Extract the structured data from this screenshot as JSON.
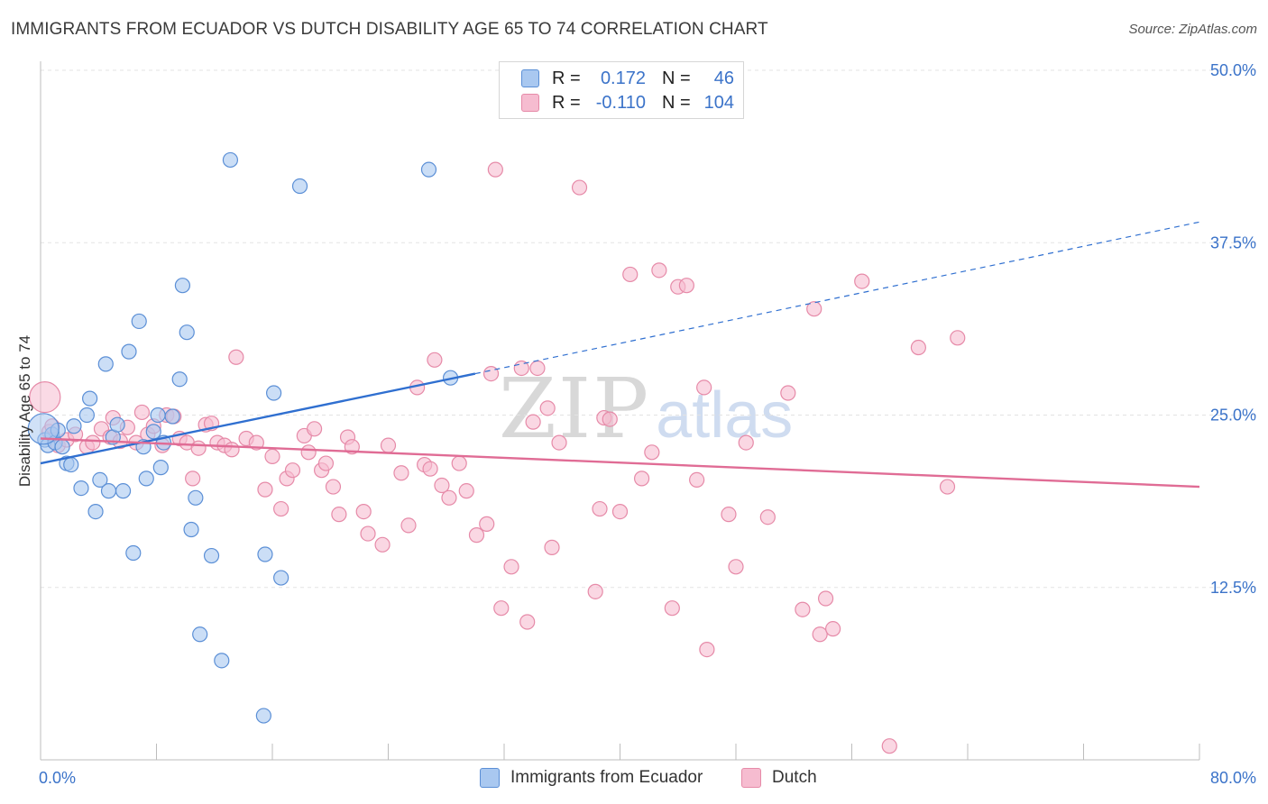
{
  "title": "IMMIGRANTS FROM ECUADOR VS DUTCH DISABILITY AGE 65 TO 74 CORRELATION CHART",
  "source": "Source: ZipAtlas.com",
  "watermark": {
    "zip": "ZIP",
    "atlas": "atlas"
  },
  "legend": {
    "rows": [
      {
        "r_label": "R =",
        "r_value": "0.172",
        "n_label": "N =",
        "n_value": "46"
      },
      {
        "r_label": "R =",
        "r_value": "-0.110",
        "n_label": "N =",
        "n_value": "104"
      }
    ]
  },
  "colors": {
    "blue_fill": "#a9c8f0",
    "blue_stroke": "#5b8fd6",
    "blue_line": "#2f6fd0",
    "pink_fill": "#f6bcd0",
    "pink_stroke": "#e68aa8",
    "pink_line": "#e06c95",
    "grid": "#e3e3e3",
    "tick_text": "#3b73c9"
  },
  "chart_data": {
    "type": "scatter",
    "title": "IMMIGRANTS FROM ECUADOR VS DUTCH DISABILITY AGE 65 TO 74 CORRELATION CHART",
    "xlabel": "",
    "ylabel": "Disability Age 65 to 74",
    "xlim": [
      0,
      80
    ],
    "ylim": [
      0,
      50
    ],
    "x_tick_labels": [
      "0.0%",
      "80.0%"
    ],
    "y_ticks": [
      12.5,
      25.0,
      37.5,
      50.0
    ],
    "y_tick_labels": [
      "12.5%",
      "25.0%",
      "37.5%",
      "50.0%"
    ],
    "series": [
      {
        "name": "Immigrants from Ecuador",
        "color": "blue",
        "r": 0.172,
        "n": 46,
        "trend": {
          "x0": 0,
          "y0": 21.5,
          "x1": 30,
          "y1": 28.0,
          "dash_x1": 80,
          "dash_y1": 39.0
        },
        "points": [
          [
            0.3,
            23.2
          ],
          [
            0.5,
            22.8
          ],
          [
            0.8,
            23.6
          ],
          [
            1.0,
            23.0
          ],
          [
            1.2,
            23.9
          ],
          [
            1.5,
            22.7
          ],
          [
            1.8,
            21.5
          ],
          [
            2.1,
            21.4
          ],
          [
            2.3,
            24.2
          ],
          [
            2.8,
            19.7
          ],
          [
            3.2,
            25.0
          ],
          [
            3.4,
            26.2
          ],
          [
            3.8,
            18.0
          ],
          [
            4.1,
            20.3
          ],
          [
            4.5,
            28.7
          ],
          [
            4.7,
            19.5
          ],
          [
            5.0,
            23.4
          ],
          [
            5.3,
            24.3
          ],
          [
            5.7,
            19.5
          ],
          [
            6.1,
            29.6
          ],
          [
            6.4,
            15.0
          ],
          [
            6.8,
            31.8
          ],
          [
            7.1,
            22.7
          ],
          [
            7.3,
            20.4
          ],
          [
            7.8,
            23.8
          ],
          [
            8.1,
            25.0
          ],
          [
            8.3,
            21.2
          ],
          [
            8.5,
            23.0
          ],
          [
            9.1,
            24.9
          ],
          [
            9.6,
            27.6
          ],
          [
            9.8,
            34.4
          ],
          [
            10.1,
            31.0
          ],
          [
            10.4,
            16.7
          ],
          [
            10.7,
            19.0
          ],
          [
            11.0,
            9.1
          ],
          [
            11.8,
            14.8
          ],
          [
            12.5,
            7.2
          ],
          [
            13.1,
            43.5
          ],
          [
            15.4,
            3.2
          ],
          [
            15.5,
            14.9
          ],
          [
            16.1,
            26.6
          ],
          [
            16.6,
            13.2
          ],
          [
            17.9,
            41.6
          ],
          [
            26.8,
            42.8
          ],
          [
            28.3,
            27.7
          ],
          [
            0.2,
            24.0
          ]
        ]
      },
      {
        "name": "Dutch",
        "color": "pink",
        "r": -0.11,
        "n": 104,
        "trend": {
          "x0": 0,
          "y0": 23.3,
          "x1": 80,
          "y1": 19.8
        },
        "points": [
          [
            0.3,
            26.3
          ],
          [
            0.6,
            23.8
          ],
          [
            1.2,
            22.8
          ],
          [
            1.8,
            23.2
          ],
          [
            2.4,
            23.6
          ],
          [
            3.2,
            22.7
          ],
          [
            3.6,
            23.0
          ],
          [
            4.2,
            24.0
          ],
          [
            4.8,
            23.4
          ],
          [
            5.0,
            24.8
          ],
          [
            5.5,
            23.1
          ],
          [
            6.0,
            24.1
          ],
          [
            6.6,
            23.0
          ],
          [
            7.0,
            25.2
          ],
          [
            7.4,
            23.6
          ],
          [
            7.8,
            24.2
          ],
          [
            8.4,
            22.8
          ],
          [
            8.7,
            25.0
          ],
          [
            9.2,
            24.9
          ],
          [
            9.6,
            23.3
          ],
          [
            10.1,
            23.0
          ],
          [
            10.5,
            20.4
          ],
          [
            10.9,
            22.6
          ],
          [
            11.4,
            24.3
          ],
          [
            11.8,
            24.4
          ],
          [
            12.2,
            23.0
          ],
          [
            12.7,
            22.8
          ],
          [
            13.2,
            22.5
          ],
          [
            13.5,
            29.2
          ],
          [
            14.2,
            23.3
          ],
          [
            14.9,
            23.0
          ],
          [
            15.5,
            19.6
          ],
          [
            16.0,
            22.0
          ],
          [
            16.6,
            18.2
          ],
          [
            17.0,
            20.4
          ],
          [
            17.4,
            21.0
          ],
          [
            18.2,
            23.5
          ],
          [
            18.5,
            22.3
          ],
          [
            18.9,
            24.0
          ],
          [
            19.4,
            21.0
          ],
          [
            19.7,
            21.5
          ],
          [
            20.2,
            19.8
          ],
          [
            20.6,
            17.8
          ],
          [
            21.2,
            23.4
          ],
          [
            21.5,
            22.7
          ],
          [
            22.3,
            18.0
          ],
          [
            22.6,
            16.4
          ],
          [
            23.6,
            15.6
          ],
          [
            24.0,
            22.8
          ],
          [
            24.9,
            20.8
          ],
          [
            25.4,
            17.0
          ],
          [
            26.0,
            27.0
          ],
          [
            26.5,
            21.4
          ],
          [
            26.9,
            21.1
          ],
          [
            27.2,
            29.0
          ],
          [
            27.7,
            19.9
          ],
          [
            28.2,
            19.0
          ],
          [
            28.9,
            21.5
          ],
          [
            29.4,
            19.5
          ],
          [
            30.1,
            16.3
          ],
          [
            30.8,
            17.1
          ],
          [
            31.1,
            28.0
          ],
          [
            31.4,
            42.8
          ],
          [
            31.8,
            11.0
          ],
          [
            32.5,
            14.0
          ],
          [
            33.2,
            28.4
          ],
          [
            33.6,
            10.0
          ],
          [
            34.0,
            24.5
          ],
          [
            34.3,
            28.4
          ],
          [
            35.0,
            25.5
          ],
          [
            35.3,
            15.4
          ],
          [
            35.8,
            23.0
          ],
          [
            37.2,
            41.5
          ],
          [
            38.3,
            12.2
          ],
          [
            38.6,
            18.2
          ],
          [
            38.9,
            24.8
          ],
          [
            39.3,
            24.7
          ],
          [
            40.0,
            18.0
          ],
          [
            40.7,
            35.2
          ],
          [
            41.5,
            20.4
          ],
          [
            42.2,
            22.3
          ],
          [
            42.7,
            35.5
          ],
          [
            43.6,
            11.0
          ],
          [
            44.0,
            34.3
          ],
          [
            44.6,
            34.4
          ],
          [
            45.3,
            20.3
          ],
          [
            45.8,
            27.0
          ],
          [
            46.0,
            8.0
          ],
          [
            47.5,
            17.8
          ],
          [
            48.0,
            14.0
          ],
          [
            48.7,
            23.0
          ],
          [
            50.2,
            17.6
          ],
          [
            51.6,
            26.6
          ],
          [
            52.6,
            10.9
          ],
          [
            53.4,
            32.7
          ],
          [
            53.8,
            9.1
          ],
          [
            54.2,
            11.7
          ],
          [
            54.7,
            9.5
          ],
          [
            56.7,
            34.7
          ],
          [
            58.6,
            1.0
          ],
          [
            60.6,
            29.9
          ],
          [
            62.6,
            19.8
          ],
          [
            63.3,
            30.6
          ],
          [
            0.8,
            24.2
          ]
        ]
      }
    ]
  },
  "bottom_legend": [
    {
      "label": "Immigrants from Ecuador"
    },
    {
      "label": "Dutch"
    }
  ]
}
